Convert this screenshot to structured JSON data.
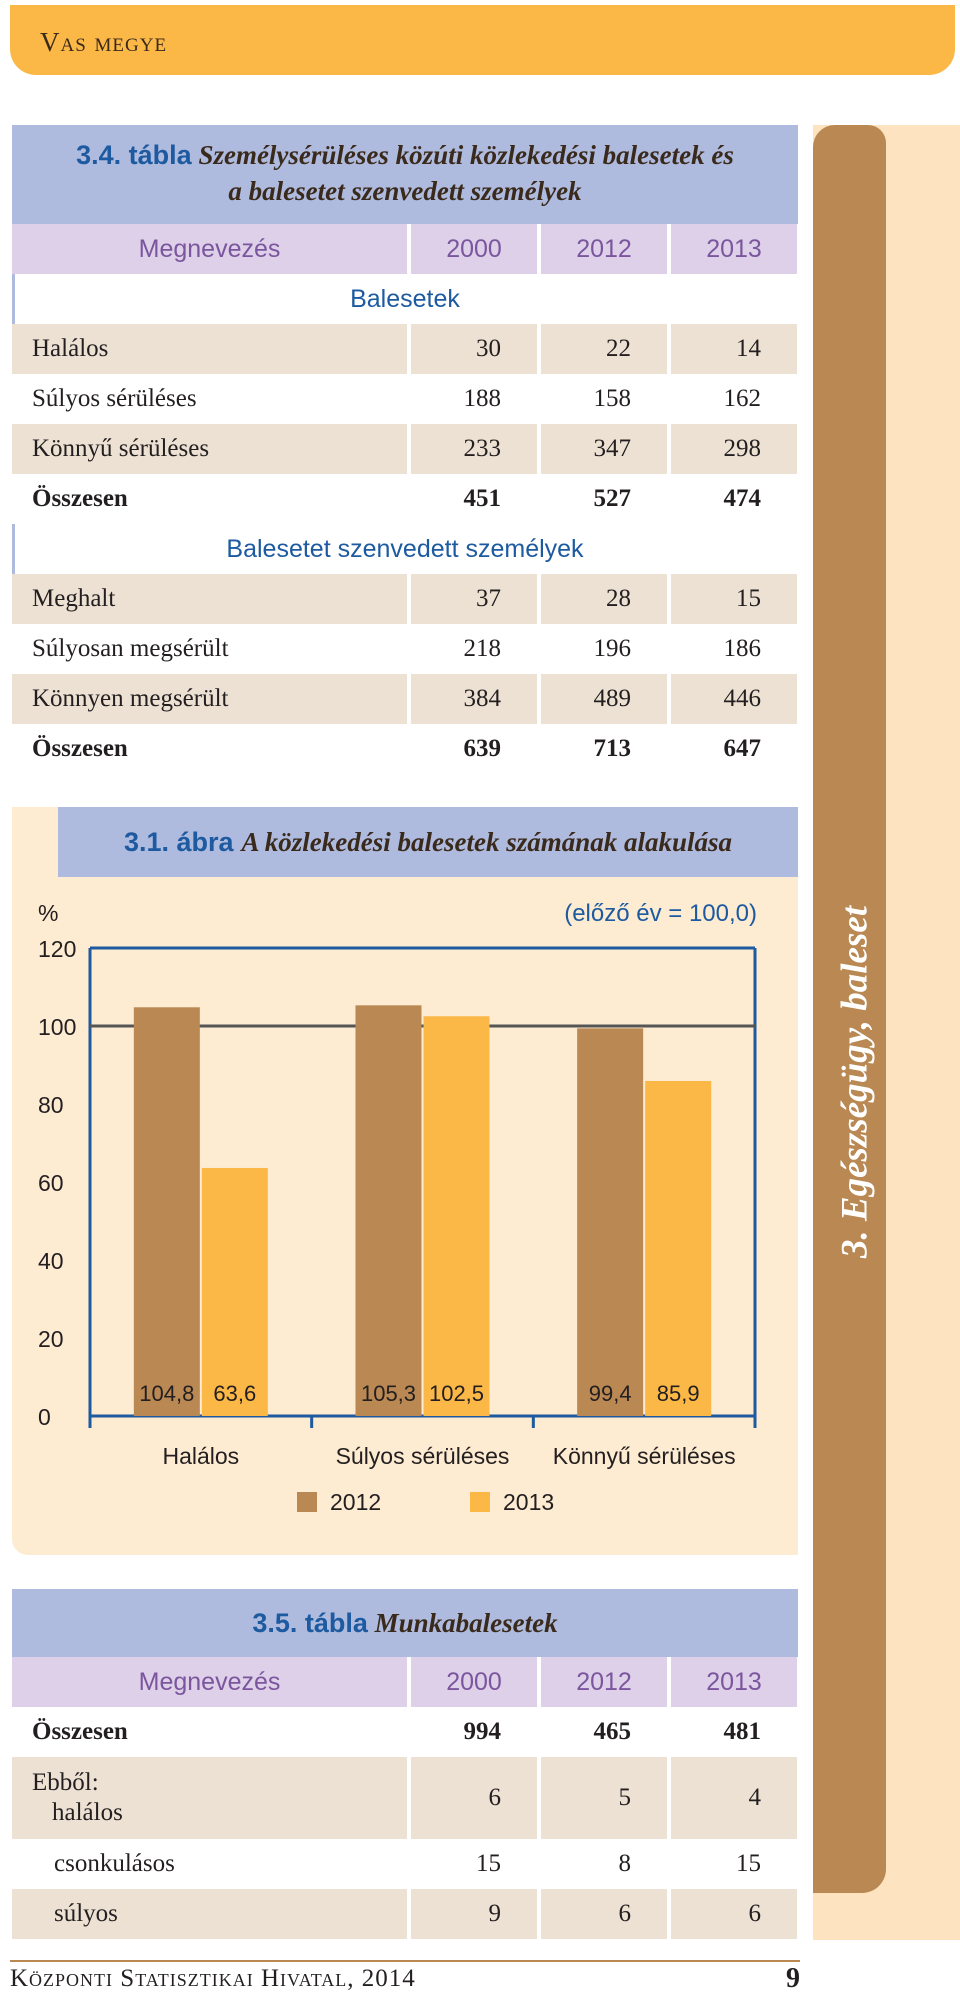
{
  "header": {
    "title": "Vas megye"
  },
  "side_tab": {
    "label": "3. Egészségügy, baleset"
  },
  "table1": {
    "caption_num": "3.4. tábla",
    "caption_line1": "Személysérüléses közúti közlekedési balesetek és",
    "caption_line2": "a balesetet szenvedett személyek",
    "headers": [
      "Megnevezés",
      "2000",
      "2012",
      "2013"
    ],
    "section1": "Balesetek",
    "rows1": [
      {
        "label": "Halálos",
        "v": [
          "30",
          "22",
          "14"
        ]
      },
      {
        "label": "Súlyos sérüléses",
        "v": [
          "188",
          "158",
          "162"
        ]
      },
      {
        "label": "Könnyű sérüléses",
        "v": [
          "233",
          "347",
          "298"
        ]
      },
      {
        "label": "Összesen",
        "v": [
          "451",
          "527",
          "474"
        ]
      }
    ],
    "section2": "Balesetet szenvedett személyek",
    "rows2": [
      {
        "label": "Meghalt",
        "v": [
          "37",
          "28",
          "15"
        ]
      },
      {
        "label": "Súlyosan megsérült",
        "v": [
          "218",
          "196",
          "186"
        ]
      },
      {
        "label": "Könnyen megsérült",
        "v": [
          "384",
          "489",
          "446"
        ]
      },
      {
        "label": "Összesen",
        "v": [
          "639",
          "713",
          "647"
        ]
      }
    ]
  },
  "chart_caption_num": "3.1. ábra",
  "chart_caption_text": "A közlekedési balesetek számának alakulása",
  "chart_data": {
    "type": "bar",
    "title": "A közlekedési balesetek számának alakulása",
    "ylabel": "%",
    "annotation": "(előző év = 100,0)",
    "categories": [
      "Halálos",
      "Súlyos sérüléses",
      "Könnyű sérüléses"
    ],
    "series": [
      {
        "name": "2012",
        "values": [
          104.8,
          105.3,
          99.4
        ],
        "labels": [
          "104,8",
          "105,3",
          "99,4"
        ],
        "color": "#b98853"
      },
      {
        "name": "2013",
        "values": [
          63.6,
          102.5,
          85.9
        ],
        "labels": [
          "63,6",
          "102,5",
          "85,9"
        ],
        "color": "#fbb847"
      }
    ],
    "ylim": [
      0,
      120
    ],
    "yticks": [
      "0",
      "20",
      "40",
      "60",
      "80",
      "100",
      "120"
    ],
    "reference_line": 100,
    "legend": "bottom"
  },
  "table2": {
    "caption_num": "3.5. tábla",
    "caption_text": "Munkabalesetek",
    "headers": [
      "Megnevezés",
      "2000",
      "2012",
      "2013"
    ],
    "rows": [
      {
        "label": "Összesen",
        "v": [
          "994",
          "465",
          "481"
        ]
      },
      {
        "label": "Ebből:",
        "label2": "halálos",
        "v": [
          "6",
          "5",
          "4"
        ]
      },
      {
        "label": "csonkulásos",
        "v": [
          "15",
          "8",
          "15"
        ]
      },
      {
        "label": "súlyos",
        "v": [
          "9",
          "6",
          "6"
        ]
      }
    ]
  },
  "footer": {
    "text": "Központi Statisztikai Hivatal, 2014",
    "page": "9"
  }
}
